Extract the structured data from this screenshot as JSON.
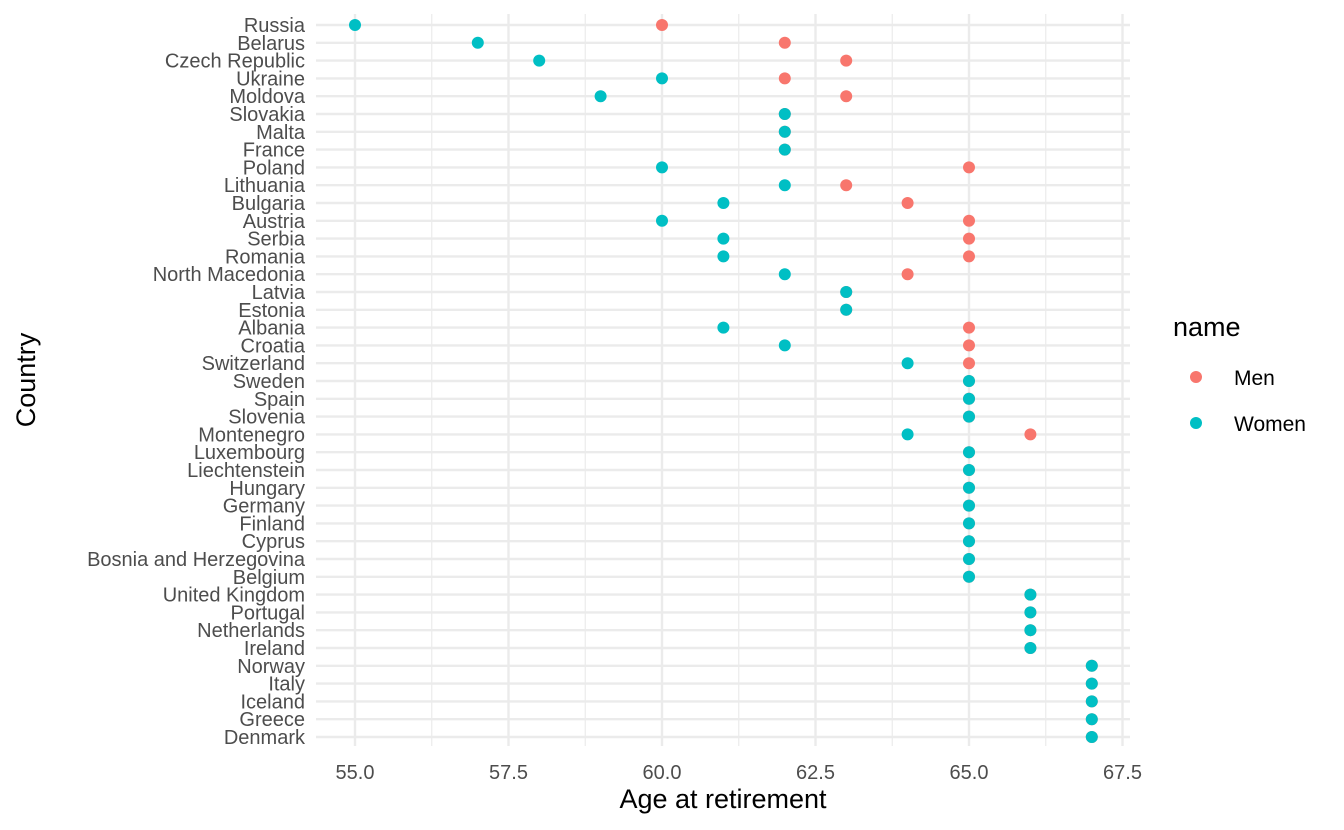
{
  "chart_data": {
    "type": "scatter",
    "xlabel": "Age at retirement",
    "ylabel": "Country",
    "xlim": [
      54.8,
      67.2
    ],
    "x_ticks": [
      55.0,
      57.5,
      60.0,
      62.5,
      65.0,
      67.5
    ],
    "x_tick_labels": [
      "55.0",
      "57.5",
      "60.0",
      "62.5",
      "65.0",
      "67.5"
    ],
    "grid": true,
    "legend": {
      "title": "name",
      "position": "right",
      "items": [
        {
          "label": "Men",
          "color": "#f8766d"
        },
        {
          "label": "Women",
          "color": "#00bfc4"
        }
      ]
    },
    "categories": [
      "Russia",
      "Belarus",
      "Czech Republic",
      "Ukraine",
      "Moldova",
      "Slovakia",
      "Malta",
      "France",
      "Poland",
      "Lithuania",
      "Bulgaria",
      "Austria",
      "Serbia",
      "Romania",
      "North Macedonia",
      "Latvia",
      "Estonia",
      "Albania",
      "Croatia",
      "Switzerland",
      "Sweden",
      "Spain",
      "Slovenia",
      "Montenegro",
      "Luxembourg",
      "Liechtenstein",
      "Hungary",
      "Germany",
      "Finland",
      "Cyprus",
      "Bosnia and Herzegovina",
      "Belgium",
      "United Kingdom",
      "Portugal",
      "Netherlands",
      "Ireland",
      "Norway",
      "Italy",
      "Iceland",
      "Greece",
      "Denmark"
    ],
    "series": [
      {
        "name": "Men",
        "color": "#f8766d",
        "values": [
          60,
          62,
          63,
          62,
          63,
          62,
          62,
          62,
          65,
          63,
          64,
          65,
          65,
          65,
          64,
          63,
          63,
          65,
          65,
          65,
          65,
          65,
          65,
          66,
          65,
          65,
          65,
          65,
          65,
          65,
          65,
          65,
          66,
          66,
          66,
          66,
          67,
          67,
          67,
          67,
          67
        ]
      },
      {
        "name": "Women",
        "color": "#00bfc4",
        "values": [
          55,
          57,
          58,
          60,
          59,
          62,
          62,
          62,
          60,
          62,
          61,
          60,
          61,
          61,
          62,
          63,
          63,
          61,
          62,
          64,
          65,
          65,
          65,
          64,
          65,
          65,
          65,
          65,
          65,
          65,
          65,
          65,
          66,
          66,
          66,
          66,
          67,
          67,
          67,
          67,
          67
        ]
      }
    ]
  }
}
